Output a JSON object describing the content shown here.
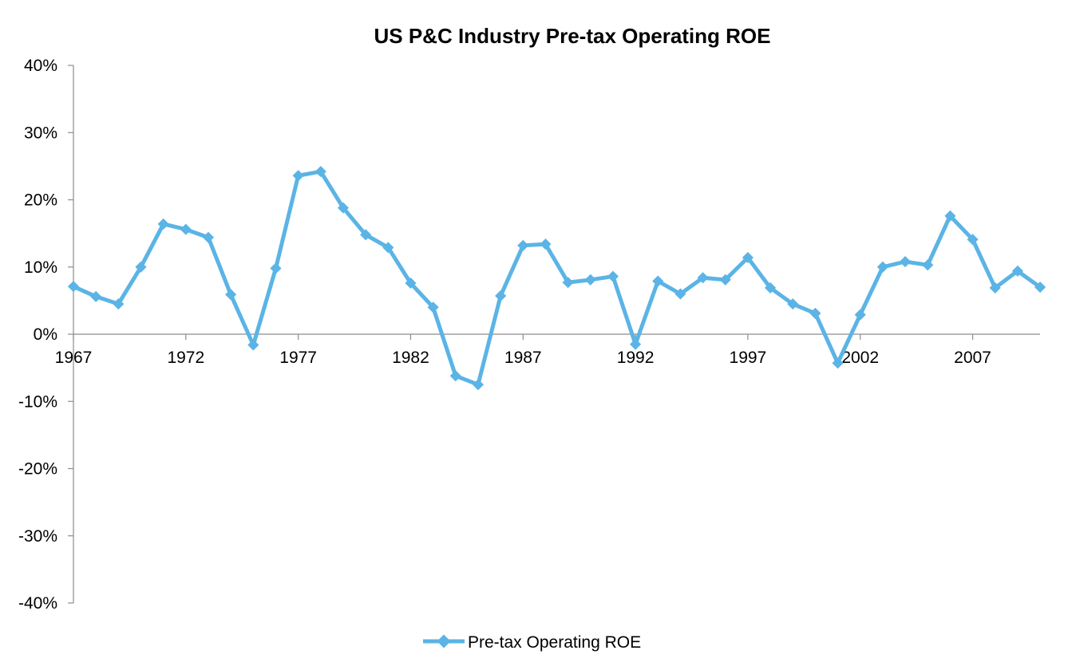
{
  "chart_data": {
    "type": "line",
    "title": "US P&C Industry Pre-tax Operating ROE",
    "xlabel": "",
    "ylabel": "",
    "x": [
      1967,
      1968,
      1969,
      1970,
      1971,
      1972,
      1973,
      1974,
      1975,
      1976,
      1977,
      1978,
      1979,
      1980,
      1981,
      1982,
      1983,
      1984,
      1985,
      1986,
      1987,
      1988,
      1989,
      1990,
      1991,
      1992,
      1993,
      1994,
      1995,
      1996,
      1997,
      1998,
      1999,
      2000,
      2001,
      2002,
      2003,
      2004,
      2005,
      2006,
      2007,
      2008,
      2009,
      2010
    ],
    "series": [
      {
        "name": "Pre-tax Operating ROE",
        "color": "#5BB4E5",
        "marker": "diamond",
        "values": [
          7.1,
          5.6,
          4.5,
          10.0,
          16.4,
          15.6,
          14.4,
          5.9,
          -1.6,
          9.8,
          23.6,
          24.2,
          18.8,
          14.8,
          12.9,
          7.6,
          4.0,
          -6.2,
          -7.5,
          5.7,
          13.2,
          13.4,
          7.7,
          8.1,
          8.6,
          -1.5,
          7.9,
          6.0,
          8.4,
          8.1,
          11.4,
          6.9,
          4.5,
          3.1,
          -4.3,
          2.9,
          10.0,
          10.8,
          10.3,
          17.6,
          14.1,
          6.9,
          9.4,
          7.0
        ]
      }
    ],
    "ylim": [
      -40,
      40
    ],
    "yticks": [
      "-40%",
      "-30%",
      "-20%",
      "-10%",
      "0%",
      "10%",
      "20%",
      "30%",
      "40%"
    ],
    "ytick_values": [
      -40,
      -30,
      -20,
      -10,
      0,
      10,
      20,
      30,
      40
    ],
    "xticks": [
      "1967",
      "1972",
      "1977",
      "1982",
      "1987",
      "1992",
      "1997",
      "2002",
      "2007"
    ],
    "xtick_values": [
      1967,
      1972,
      1977,
      1982,
      1987,
      1992,
      1997,
      2002,
      2007
    ],
    "grid": false,
    "legend_position": "bottom-center"
  }
}
